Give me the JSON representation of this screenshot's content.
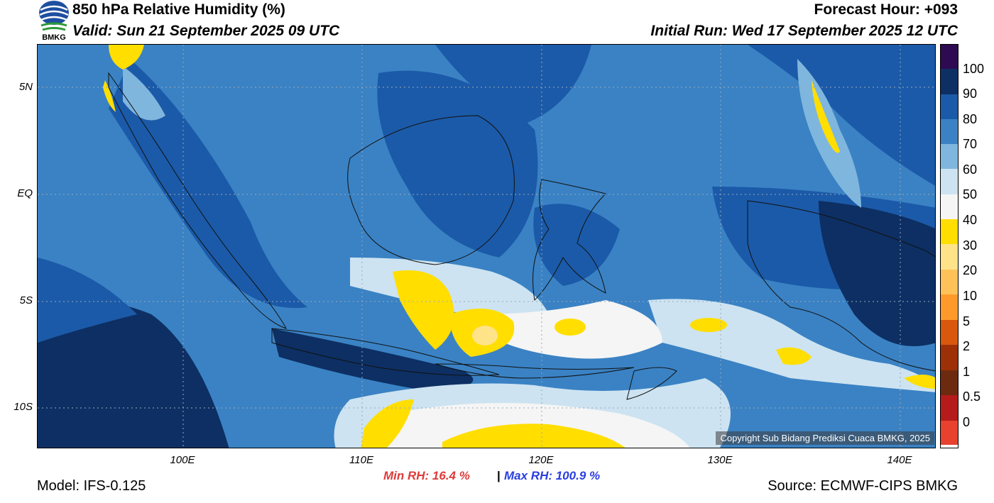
{
  "header": {
    "title": "850 hPa Relative Humidity (%)",
    "valid": "Valid: Sun 21 September 2025 09 UTC",
    "forecast_hour": "Forecast Hour: +093",
    "initial_run": "Initial Run: Wed 17 September 2025 12 UTC"
  },
  "logo": {
    "text": "BMKG",
    "icon": "bmkg-logo-icon"
  },
  "axes": {
    "y_labels": [
      "5N",
      "EQ",
      "5S",
      "10S"
    ],
    "x_labels": [
      "100E",
      "110E",
      "120E",
      "130E",
      "140E"
    ]
  },
  "colorbar": {
    "labels": [
      "100",
      "90",
      "80",
      "70",
      "60",
      "50",
      "40",
      "30",
      "20",
      "10",
      "5",
      "2",
      "1",
      "0.5",
      "0"
    ],
    "colors": [
      "#2e0a52",
      "#0d2f63",
      "#1b5aa8",
      "#3a82c4",
      "#7fb6de",
      "#cde3f1",
      "#f5f5f5",
      "#ffde00",
      "#ffe389",
      "#ffc258",
      "#ff9a2a",
      "#d9580d",
      "#9e3008",
      "#6e2a0e",
      "#b51b1b",
      "#e8412e"
    ]
  },
  "stats": {
    "min_rh": "Min RH:  16.4 %",
    "separator": "|",
    "max_rh": "Max RH: 100.9 %"
  },
  "footer": {
    "model": "Model: IFS-0.125",
    "source": "Source: ECMWF-CIPS BMKG",
    "copyright": "Copyright Sub Bidang Prediksi Cuaca BMKG, 2025"
  }
}
